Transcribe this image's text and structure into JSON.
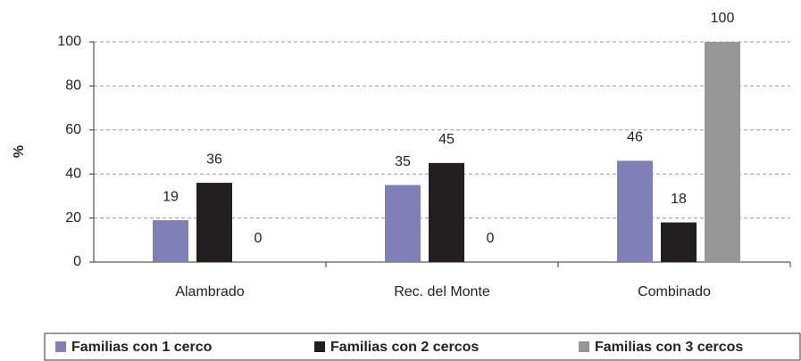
{
  "chart_data": {
    "type": "bar",
    "y_label": "%",
    "categories": [
      "Alambrado",
      "Rec. del Monte",
      "Combinado"
    ],
    "series": [
      {
        "name": "Familias con 1 cerco",
        "color": "#8080b8",
        "values": [
          19,
          35,
          46
        ]
      },
      {
        "name": "Familias con 2 cercos",
        "color": "#231f20",
        "values": [
          36,
          45,
          18
        ]
      },
      {
        "name": "Familias con 3 cercos",
        "color": "#969696",
        "values": [
          0,
          0,
          100
        ]
      }
    ],
    "ylim": [
      0,
      100
    ],
    "yticks": [
      0,
      20,
      40,
      60,
      80,
      100
    ],
    "grid": true,
    "legend": "bottom"
  }
}
